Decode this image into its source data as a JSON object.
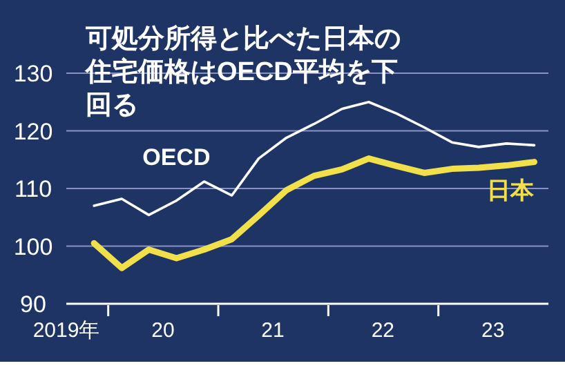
{
  "chart_data": {
    "type": "line",
    "title": "可処分所得と比べた日本の住宅価格はOECD平均を下回る",
    "x": [
      "2019-11-15",
      "2020-02-15",
      "2020-05-15",
      "2020-08-15",
      "2020-11-15",
      "2021-02-15",
      "2021-05-15",
      "2021-08-15",
      "2021-11-15",
      "2022-02-15",
      "2022-05-15",
      "2022-08-15",
      "2022-11-15",
      "2023-02-15",
      "2023-05-15",
      "2023-08-15",
      "2023-11-15"
    ],
    "series": [
      {
        "name": "OECD",
        "color": "#ffffff",
        "values": [
          107.0,
          108.2,
          105.4,
          107.9,
          111.2,
          108.8,
          115.2,
          118.8,
          121.2,
          123.8,
          125.0,
          123.0,
          120.6,
          118.0,
          117.2,
          117.8,
          117.5
        ]
      },
      {
        "name": "日本",
        "color": "#f2e04b",
        "values": [
          100.5,
          96.2,
          99.4,
          97.9,
          99.4,
          101.2,
          105.3,
          109.7,
          112.2,
          113.3,
          115.2,
          113.9,
          112.7,
          113.4,
          113.6,
          114.0,
          114.6
        ]
      }
    ],
    "xlim": [
      "2019-08-15",
      "2024-01-01"
    ],
    "xticks": [
      {
        "value": "2019-08-15",
        "label": "2019年"
      },
      {
        "value": "2020-01-01",
        "label": null
      },
      {
        "value": "2020-07-01",
        "label": "20"
      },
      {
        "value": "2021-01-01",
        "label": null
      },
      {
        "value": "2021-07-01",
        "label": "21"
      },
      {
        "value": "2022-01-01",
        "label": null
      },
      {
        "value": "2022-07-01",
        "label": "22"
      },
      {
        "value": "2023-01-01",
        "label": null
      },
      {
        "value": "2023-07-01",
        "label": "23"
      }
    ],
    "ylim": [
      90,
      130
    ],
    "yticks": [
      90,
      100,
      110,
      120,
      130
    ],
    "grid": "y",
    "legend": false
  }
}
